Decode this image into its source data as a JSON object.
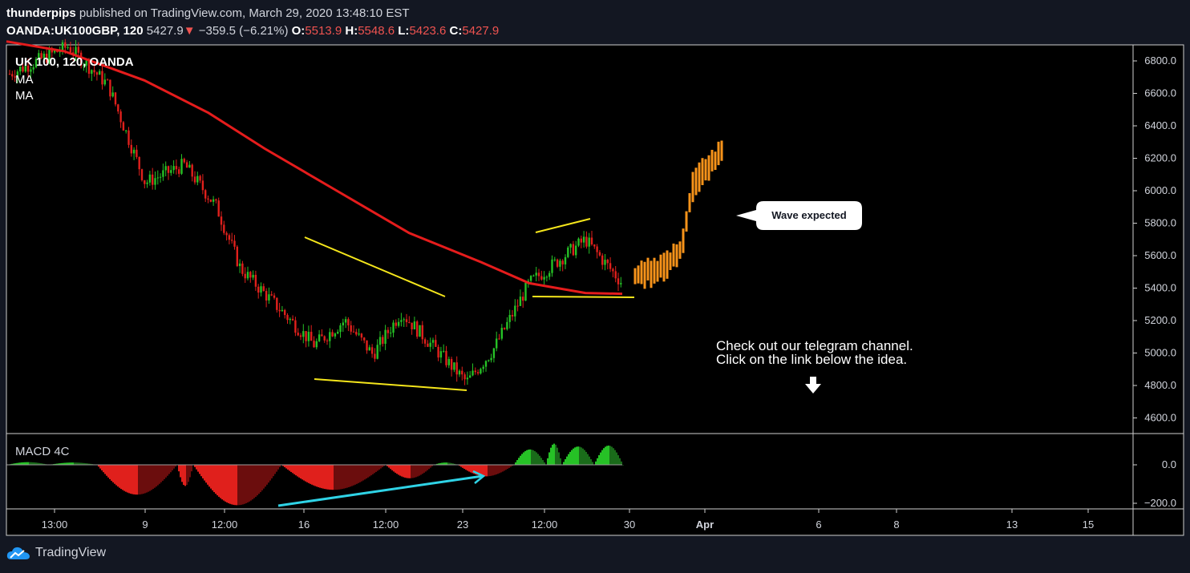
{
  "header": {
    "author": "thunderpips",
    "published_text": "published on TradingView.com, March 29, 2020 13:48:10 EST",
    "symbol": "OANDA:UK100GBP, 120",
    "last_price": "5427.9",
    "change_arrow": "▼",
    "change": "−359.5 (−6.21%)",
    "open_label": "O:",
    "open": "5513.9",
    "high_label": "H:",
    "high": "5548.6",
    "low_label": "L:",
    "low": "5423.6",
    "close_label": "C:",
    "close": "5427.9"
  },
  "legend": {
    "title": "UK 100, 120, OANDA",
    "ma1": "MA",
    "ma2": "MA",
    "macd_title": "MACD 4C"
  },
  "annotations": {
    "callout": "Wave expected",
    "note_line1": "Check out our telegram channel.",
    "note_line2": "Click on the link below the idea.",
    "note_arrow": "🡇"
  },
  "footer": {
    "brand": "TradingView"
  },
  "colors": {
    "background": "#000000",
    "page": "#131722",
    "up": "#26c126",
    "down": "#e0201c",
    "projection": "#f7931a",
    "ma": "#e51c1c",
    "trendline": "#f5e61b",
    "macd_trend": "#2fd3e6",
    "macd_green_dark": "#1a6b1a",
    "macd_red_dark": "#6b0d0d"
  },
  "chart_data": [
    {
      "type": "candlestick",
      "title": "UK 100, 120, OANDA",
      "y_ticks": [
        "6800.0",
        "6600.0",
        "6400.0",
        "6200.0",
        "6000.0",
        "5800.0",
        "5600.0",
        "5400.0",
        "5200.0",
        "5000.0",
        "4800.0",
        "4600.0"
      ],
      "ylim": [
        4480,
        6920
      ],
      "x_ticks": [
        "13:00",
        "9",
        "12:00",
        "16",
        "12:00",
        "23",
        "12:00",
        "30",
        "Apr",
        "6",
        "8",
        "13",
        "15"
      ],
      "series": [
        {
          "name": "MA",
          "x": [
            "Mar 2",
            "Mar 4",
            "Mar 9",
            "Mar 11",
            "Mar 13",
            "Mar 17",
            "Mar 19",
            "Mar 23",
            "Mar 25",
            "Mar 27",
            "Mar 29"
          ],
          "y": [
            6920,
            6860,
            6680,
            6480,
            6260,
            6000,
            5740,
            5560,
            5430,
            5370,
            5365
          ]
        },
        {
          "name": "Price",
          "x": [
            "Mar 2",
            "Mar 4",
            "Mar 6",
            "Mar 9",
            "Mar 11",
            "Mar 12",
            "Mar 13",
            "Mar 16",
            "Mar 17",
            "Mar 18",
            "Mar 19",
            "Mar 20",
            "Mar 23",
            "Mar 24",
            "Mar 25",
            "Mar 26",
            "Mar 27"
          ],
          "y": [
            6720,
            6890,
            6650,
            6050,
            6160,
            5900,
            5520,
            5300,
            5050,
            5200,
            4990,
            5250,
            4820,
            5020,
            5430,
            5700,
            5430
          ]
        },
        {
          "name": "Projection",
          "x": [
            "Mar 30",
            "Mar 31",
            "Apr 1",
            "Apr 2",
            "Apr 3"
          ],
          "y": [
            5480,
            5520,
            5660,
            6050,
            6230
          ]
        }
      ]
    },
    {
      "type": "bar",
      "title": "MACD 4C",
      "y_ticks": [
        "0.0",
        "−200.0"
      ],
      "ylim": [
        -225,
        155
      ]
    }
  ]
}
